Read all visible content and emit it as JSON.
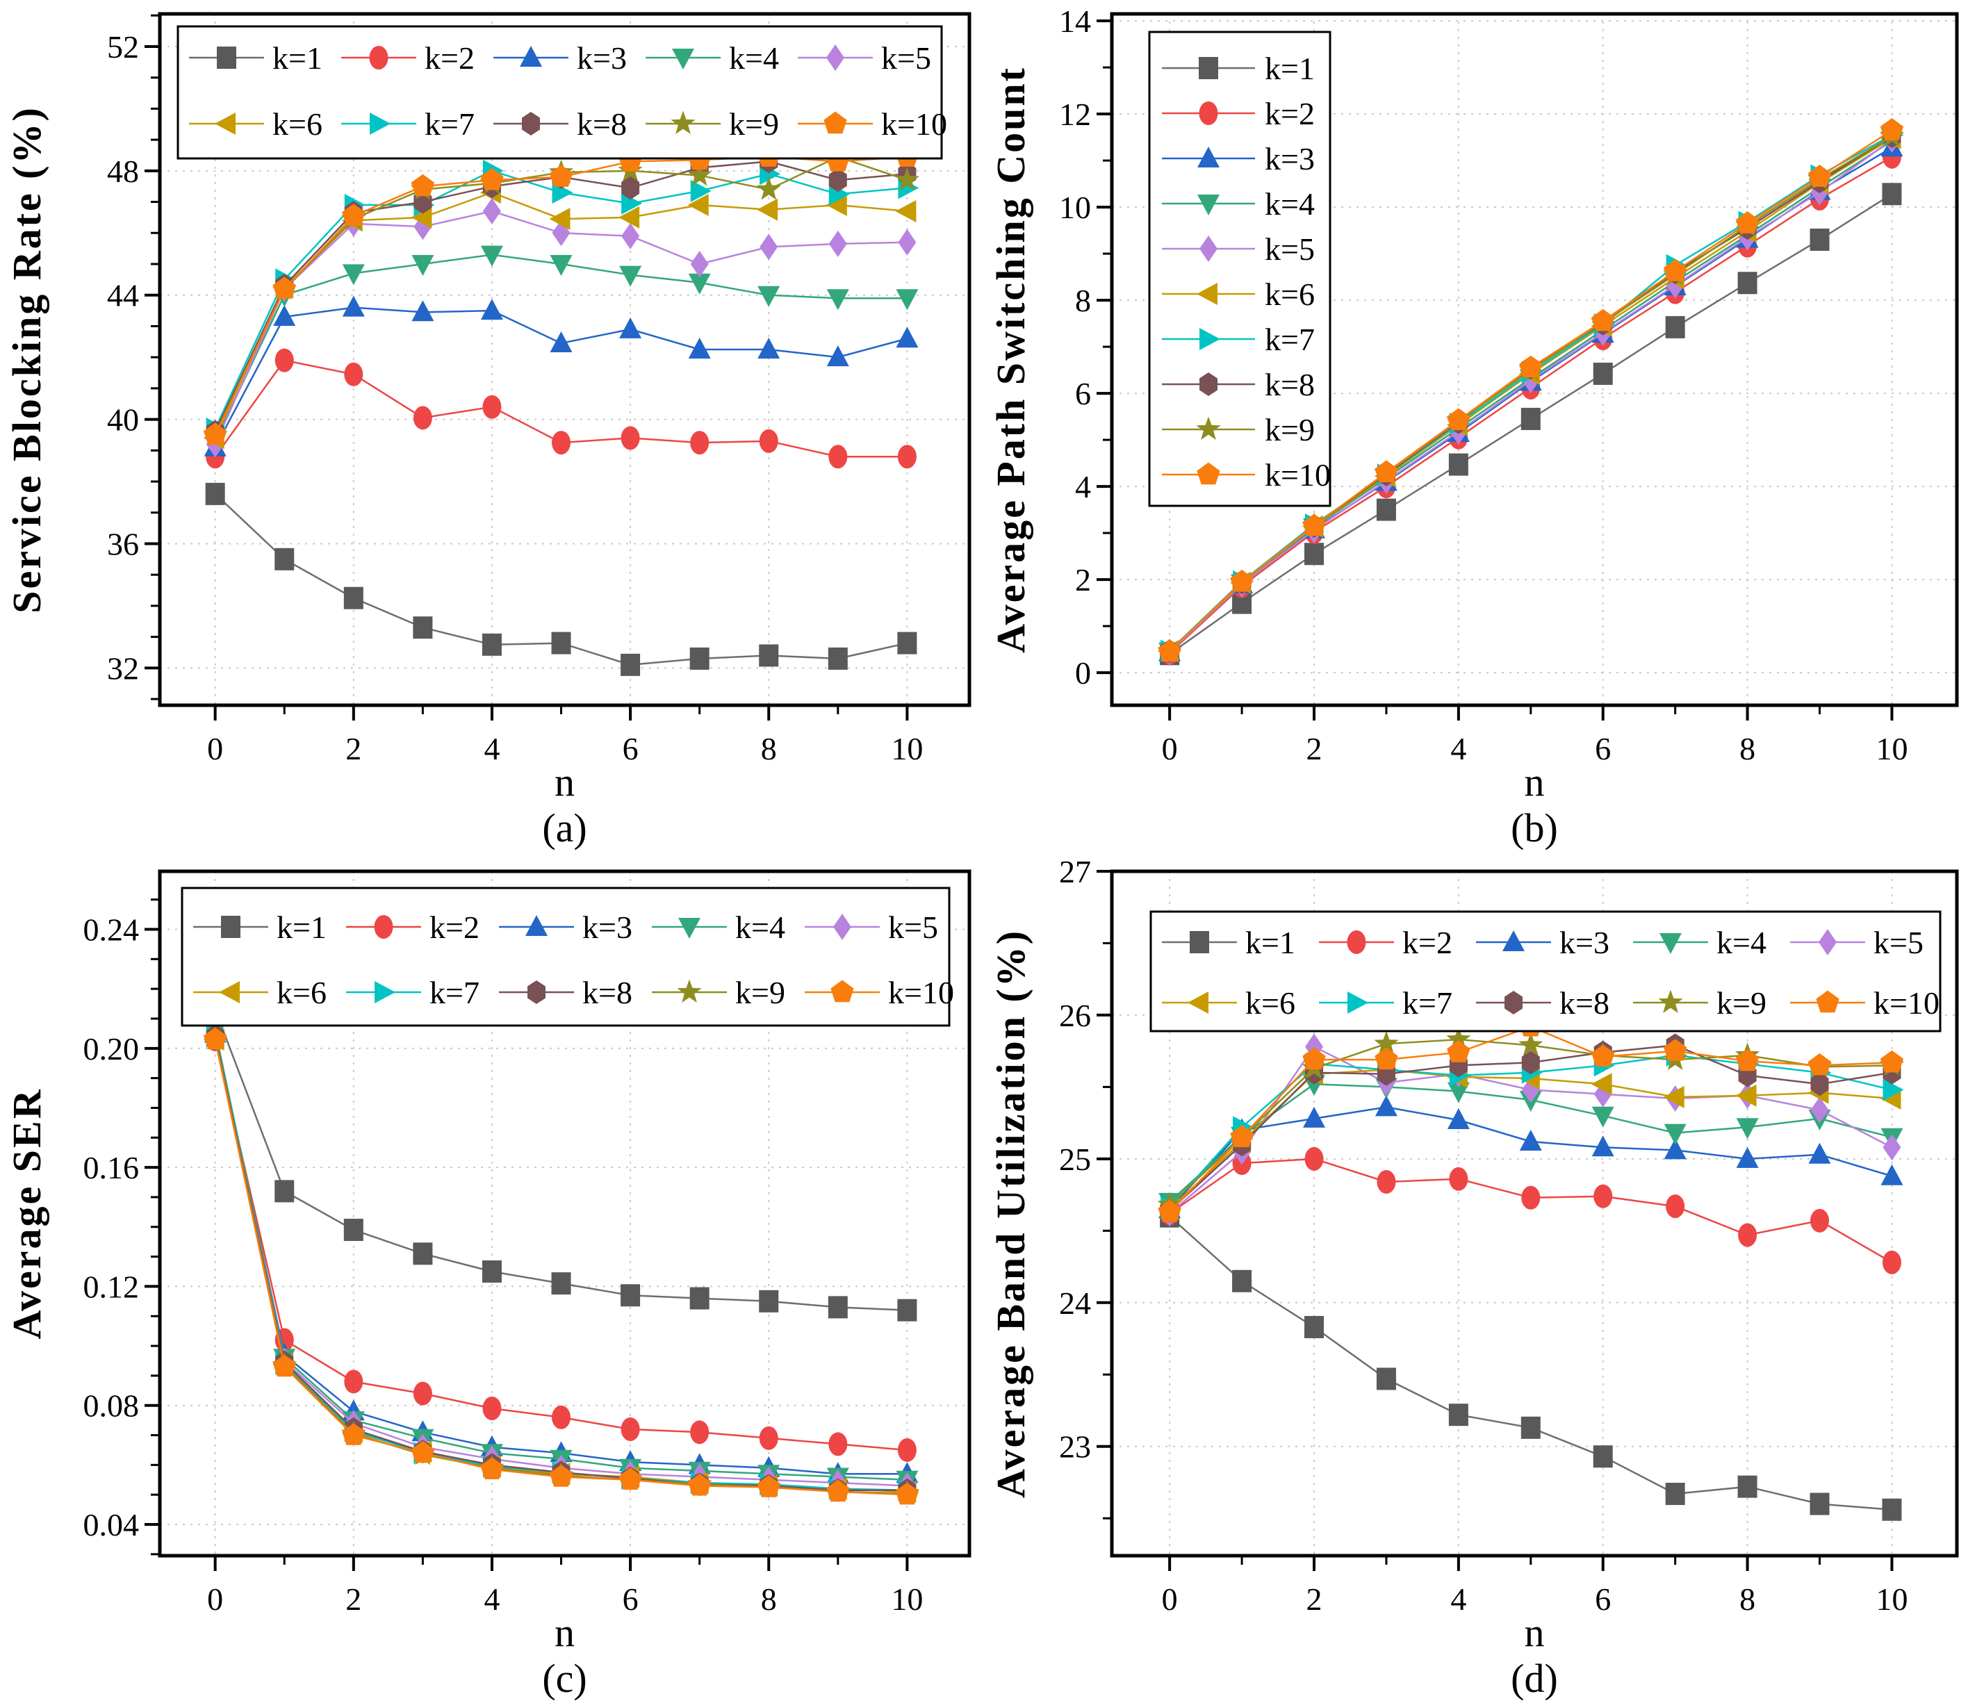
{
  "figure": {
    "background": "#ffffff",
    "captions": [
      "(a)",
      "(b)",
      "(c)",
      "(d)"
    ]
  },
  "styles": {
    "grid_color": "#c9c9c9",
    "axis_color": "#000000",
    "series": [
      {
        "name": "k=1",
        "color": "#595959",
        "line_color": "#6e6e6e",
        "marker": "square"
      },
      {
        "name": "k=2",
        "color": "#ee4545",
        "line_color": "#ee4545",
        "marker": "circle"
      },
      {
        "name": "k=3",
        "color": "#2365c8",
        "line_color": "#2365c8",
        "marker": "triangle-up"
      },
      {
        "name": "k=4",
        "color": "#33a77c",
        "line_color": "#33a77c",
        "marker": "triangle-down"
      },
      {
        "name": "k=5",
        "color": "#b982df",
        "line_color": "#b982df",
        "marker": "diamond"
      },
      {
        "name": "k=6",
        "color": "#c79b00",
        "line_color": "#c79b00",
        "marker": "triangle-left"
      },
      {
        "name": "k=7",
        "color": "#00c4c4",
        "line_color": "#00c4c4",
        "marker": "triangle-right"
      },
      {
        "name": "k=8",
        "color": "#7a5155",
        "line_color": "#7a5155",
        "marker": "hexagon"
      },
      {
        "name": "k=9",
        "color": "#8e8e20",
        "line_color": "#8e8e20",
        "marker": "star"
      },
      {
        "name": "k=10",
        "color": "#f97d0c",
        "line_color": "#f97d0c",
        "marker": "pentagon"
      }
    ]
  },
  "chart_data": [
    {
      "id": "a",
      "type": "line",
      "caption": "(a)",
      "xlabel": "n",
      "ylabel": "Service Blocking Rate (%)",
      "x": [
        0,
        1,
        2,
        3,
        4,
        5,
        6,
        7,
        8,
        9,
        10
      ],
      "xlim": [
        -0.8,
        10.9
      ],
      "ylim": [
        30.8,
        53.05
      ],
      "xticks": [
        0,
        2,
        4,
        6,
        8,
        10
      ],
      "yticks": [
        32,
        36,
        40,
        44,
        48,
        52
      ],
      "x_minor_div": 2,
      "y_minor_div": 4,
      "y_decimals": 0,
      "legend_position": "top-grid",
      "series": [
        {
          "name": "k=1",
          "values": [
            37.6,
            35.5,
            34.25,
            33.3,
            32.75,
            32.8,
            32.1,
            32.3,
            32.4,
            32.3,
            32.8
          ]
        },
        {
          "name": "k=2",
          "values": [
            38.8,
            41.9,
            41.45,
            40.05,
            40.4,
            39.25,
            39.4,
            39.25,
            39.3,
            38.8,
            38.8
          ]
        },
        {
          "name": "k=3",
          "values": [
            39.1,
            43.3,
            43.6,
            43.45,
            43.5,
            42.45,
            42.9,
            42.25,
            42.25,
            42.0,
            42.6
          ]
        },
        {
          "name": "k=4",
          "values": [
            39.3,
            44.0,
            44.7,
            45.0,
            45.3,
            45.0,
            44.65,
            44.4,
            44.0,
            43.9,
            43.9
          ]
        },
        {
          "name": "k=5",
          "values": [
            39.2,
            44.2,
            46.3,
            46.2,
            46.7,
            46.0,
            45.9,
            45.0,
            45.55,
            45.65,
            45.7
          ]
        },
        {
          "name": "k=6",
          "values": [
            39.4,
            44.25,
            46.4,
            46.5,
            47.3,
            46.45,
            46.5,
            46.9,
            46.75,
            46.9,
            46.7
          ]
        },
        {
          "name": "k=7",
          "values": [
            39.7,
            44.5,
            46.9,
            46.9,
            48.0,
            47.3,
            46.95,
            47.35,
            47.9,
            47.25,
            47.45
          ]
        },
        {
          "name": "k=8",
          "values": [
            39.6,
            44.3,
            46.65,
            47.0,
            47.5,
            47.8,
            47.45,
            48.1,
            48.3,
            47.7,
            47.9
          ]
        },
        {
          "name": "k=9",
          "values": [
            39.5,
            44.2,
            46.45,
            47.4,
            47.6,
            47.95,
            48.0,
            47.85,
            47.4,
            48.45,
            47.7
          ]
        },
        {
          "name": "k=10",
          "values": [
            39.5,
            44.2,
            46.55,
            47.5,
            47.7,
            47.8,
            48.3,
            48.35,
            48.45,
            48.3,
            48.45
          ]
        }
      ]
    },
    {
      "id": "b",
      "type": "line",
      "caption": "(b)",
      "xlabel": "n",
      "ylabel": "Average Path Switching Count",
      "x": [
        0,
        1,
        2,
        3,
        4,
        5,
        6,
        7,
        8,
        9,
        10
      ],
      "xlim": [
        -0.8,
        10.9
      ],
      "ylim": [
        -0.7,
        14.15
      ],
      "xticks": [
        0,
        2,
        4,
        6,
        8,
        10
      ],
      "yticks": [
        0,
        2,
        4,
        6,
        8,
        10,
        12,
        14
      ],
      "x_minor_div": 2,
      "y_minor_div": 2,
      "y_decimals": 0,
      "legend_position": "left-column",
      "series": [
        {
          "name": "k=1",
          "values": [
            0.4,
            1.5,
            2.55,
            3.5,
            4.47,
            5.45,
            6.42,
            7.42,
            8.37,
            9.3,
            10.28
          ]
        },
        {
          "name": "k=2",
          "values": [
            0.42,
            1.86,
            3.02,
            4.0,
            5.05,
            6.12,
            7.18,
            8.17,
            9.17,
            10.18,
            11.08
          ]
        },
        {
          "name": "k=3",
          "values": [
            0.44,
            1.9,
            3.08,
            4.1,
            5.15,
            6.25,
            7.28,
            8.3,
            9.32,
            10.35,
            11.28
          ]
        },
        {
          "name": "k=4",
          "values": [
            0.45,
            1.92,
            3.12,
            4.18,
            5.25,
            6.32,
            7.36,
            8.4,
            9.4,
            10.42,
            11.42
          ]
        },
        {
          "name": "k=5",
          "values": [
            0.44,
            1.9,
            3.06,
            4.12,
            5.18,
            6.28,
            7.3,
            8.32,
            9.35,
            10.32,
            11.45
          ]
        },
        {
          "name": "k=6",
          "values": [
            0.46,
            1.93,
            3.14,
            4.22,
            5.32,
            6.42,
            7.45,
            8.48,
            9.48,
            10.52,
            11.48
          ]
        },
        {
          "name": "k=7",
          "values": [
            0.47,
            1.96,
            3.18,
            4.25,
            5.35,
            6.45,
            7.48,
            8.75,
            9.68,
            10.68,
            11.55
          ]
        },
        {
          "name": "k=8",
          "values": [
            0.46,
            1.94,
            3.15,
            4.26,
            5.38,
            6.55,
            7.5,
            8.6,
            9.55,
            10.55,
            11.52
          ]
        },
        {
          "name": "k=9",
          "values": [
            0.46,
            1.94,
            3.16,
            4.28,
            5.4,
            6.5,
            7.52,
            8.55,
            9.6,
            10.6,
            11.52
          ]
        },
        {
          "name": "k=10",
          "values": [
            0.45,
            1.95,
            3.15,
            4.3,
            5.42,
            6.55,
            7.55,
            8.62,
            9.65,
            10.65,
            11.65
          ]
        }
      ]
    },
    {
      "id": "c",
      "type": "line",
      "caption": "(c)",
      "xlabel": "n",
      "ylabel": "Average SER",
      "x": [
        0,
        1,
        2,
        3,
        4,
        5,
        6,
        7,
        8,
        9,
        10
      ],
      "xlim": [
        -0.8,
        10.9
      ],
      "ylim": [
        0.0295,
        0.2595
      ],
      "xticks": [
        0,
        2,
        4,
        6,
        8,
        10
      ],
      "yticks": [
        0.04,
        0.08,
        0.12,
        0.16,
        0.2,
        0.24
      ],
      "x_minor_div": 2,
      "y_minor_div": 4,
      "y_decimals": 2,
      "legend_position": "top-grid",
      "series": [
        {
          "name": "k=1",
          "values": [
            0.213,
            0.152,
            0.139,
            0.131,
            0.125,
            0.121,
            0.117,
            0.116,
            0.115,
            0.113,
            0.112
          ]
        },
        {
          "name": "k=2",
          "values": [
            0.203,
            0.102,
            0.088,
            0.084,
            0.079,
            0.076,
            0.072,
            0.071,
            0.069,
            0.067,
            0.065
          ]
        },
        {
          "name": "k=3",
          "values": [
            0.205,
            0.097,
            0.078,
            0.071,
            0.066,
            0.064,
            0.061,
            0.06,
            0.059,
            0.057,
            0.057
          ]
        },
        {
          "name": "k=4",
          "values": [
            0.206,
            0.096,
            0.075,
            0.069,
            0.064,
            0.062,
            0.059,
            0.058,
            0.057,
            0.056,
            0.055
          ]
        },
        {
          "name": "k=5",
          "values": [
            0.204,
            0.095,
            0.074,
            0.066,
            0.062,
            0.059,
            0.057,
            0.056,
            0.055,
            0.054,
            0.053
          ]
        },
        {
          "name": "k=6",
          "values": [
            0.203,
            0.094,
            0.071,
            0.0645,
            0.0595,
            0.057,
            0.056,
            0.054,
            0.053,
            0.052,
            0.051
          ]
        },
        {
          "name": "k=7",
          "values": [
            0.204,
            0.094,
            0.0715,
            0.064,
            0.0595,
            0.0575,
            0.0555,
            0.054,
            0.0535,
            0.052,
            0.0515
          ]
        },
        {
          "name": "k=8",
          "values": [
            0.204,
            0.0945,
            0.072,
            0.0645,
            0.06,
            0.0575,
            0.0555,
            0.0535,
            0.053,
            0.0515,
            0.0515
          ]
        },
        {
          "name": "k=9",
          "values": [
            0.203,
            0.0935,
            0.0705,
            0.0635,
            0.059,
            0.0565,
            0.055,
            0.0535,
            0.0525,
            0.051,
            0.0505
          ]
        },
        {
          "name": "k=10",
          "values": [
            0.203,
            0.093,
            0.07,
            0.064,
            0.0585,
            0.056,
            0.055,
            0.053,
            0.0525,
            0.051,
            0.05
          ]
        }
      ]
    },
    {
      "id": "d",
      "type": "line",
      "caption": "(d)",
      "xlabel": "n",
      "ylabel": "Average Band Utilization (%)",
      "x": [
        0,
        1,
        2,
        3,
        4,
        5,
        6,
        7,
        8,
        9,
        10
      ],
      "xlim": [
        -0.8,
        10.9
      ],
      "ylim": [
        22.24,
        27.0
      ],
      "xticks": [
        0,
        2,
        4,
        6,
        8,
        10
      ],
      "yticks": [
        23,
        24,
        25,
        26,
        27
      ],
      "x_minor_div": 2,
      "y_minor_div": 2,
      "y_decimals": 0,
      "legend_position": "top-grid",
      "series": [
        {
          "name": "k=1",
          "values": [
            24.6,
            24.15,
            23.83,
            23.47,
            23.22,
            23.13,
            22.93,
            22.67,
            22.72,
            22.6,
            22.56
          ]
        },
        {
          "name": "k=2",
          "values": [
            24.62,
            24.97,
            25.0,
            24.84,
            24.86,
            24.73,
            24.74,
            24.67,
            24.47,
            24.57,
            24.28
          ]
        },
        {
          "name": "k=3",
          "values": [
            24.65,
            25.2,
            25.28,
            25.36,
            25.27,
            25.12,
            25.08,
            25.06,
            25.0,
            25.03,
            24.88
          ]
        },
        {
          "name": "k=4",
          "values": [
            24.7,
            25.16,
            25.52,
            25.5,
            25.47,
            25.41,
            25.3,
            25.18,
            25.22,
            25.28,
            25.15
          ]
        },
        {
          "name": "k=5",
          "values": [
            24.62,
            25.05,
            25.78,
            25.53,
            25.59,
            25.48,
            25.45,
            25.42,
            25.44,
            25.34,
            25.08
          ]
        },
        {
          "name": "k=6",
          "values": [
            24.65,
            25.12,
            25.59,
            25.62,
            25.57,
            25.56,
            25.52,
            25.43,
            25.44,
            25.46,
            25.42
          ]
        },
        {
          "name": "k=7",
          "values": [
            24.66,
            25.22,
            25.66,
            25.62,
            25.58,
            25.6,
            25.65,
            25.72,
            25.66,
            25.6,
            25.48
          ]
        },
        {
          "name": "k=8",
          "values": [
            24.64,
            25.1,
            25.6,
            25.59,
            25.65,
            25.67,
            25.74,
            25.79,
            25.58,
            25.52,
            25.6
          ]
        },
        {
          "name": "k=9",
          "values": [
            24.68,
            25.15,
            25.63,
            25.8,
            25.83,
            25.79,
            25.72,
            25.69,
            25.72,
            25.64,
            25.65
          ]
        },
        {
          "name": "k=10",
          "values": [
            24.63,
            25.15,
            25.69,
            25.69,
            25.74,
            25.92,
            25.71,
            25.75,
            25.68,
            25.65,
            25.67
          ]
        }
      ]
    }
  ]
}
